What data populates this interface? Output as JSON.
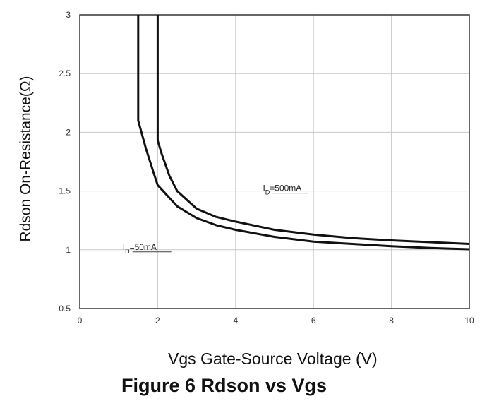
{
  "chart_data": {
    "type": "line",
    "xlabel": "Vgs Gate-Source Voltage (V)",
    "ylabel": "Rdson On-Resistance(Ω)",
    "xlim": [
      0,
      10
    ],
    "ylim": [
      0.5,
      3
    ],
    "xticks": [
      "0",
      "2",
      "4",
      "6",
      "8",
      "10"
    ],
    "yticks": [
      "0.5",
      "1",
      "1.5",
      "2",
      "2.5",
      "3"
    ],
    "grid": true,
    "series": [
      {
        "name": "ID=500mA",
        "label_main": "I",
        "label_sub": "D",
        "label_rest": "=500mA",
        "x": [
          2.0,
          2.0,
          2.1,
          2.3,
          2.5,
          3.0,
          3.5,
          4.0,
          5.0,
          6.0,
          7.0,
          8.0,
          9.0,
          10.0
        ],
        "y": [
          3.0,
          1.93,
          1.82,
          1.63,
          1.5,
          1.35,
          1.28,
          1.24,
          1.17,
          1.13,
          1.1,
          1.08,
          1.065,
          1.05
        ]
      },
      {
        "name": "ID=50mA",
        "label_main": "I",
        "label_sub": "D",
        "label_rest": "=50mA",
        "x": [
          1.5,
          1.5,
          1.7,
          1.9,
          2.0,
          2.5,
          3.0,
          3.5,
          4.0,
          5.0,
          6.0,
          7.0,
          8.0,
          9.0,
          10.0
        ],
        "y": [
          3.0,
          2.1,
          1.86,
          1.65,
          1.55,
          1.37,
          1.27,
          1.21,
          1.17,
          1.11,
          1.07,
          1.05,
          1.03,
          1.015,
          1.005
        ]
      }
    ],
    "line_color": "#111111",
    "grid_color": "#c8c8c8"
  },
  "caption": "Figure 6 Rdson vs Vgs"
}
